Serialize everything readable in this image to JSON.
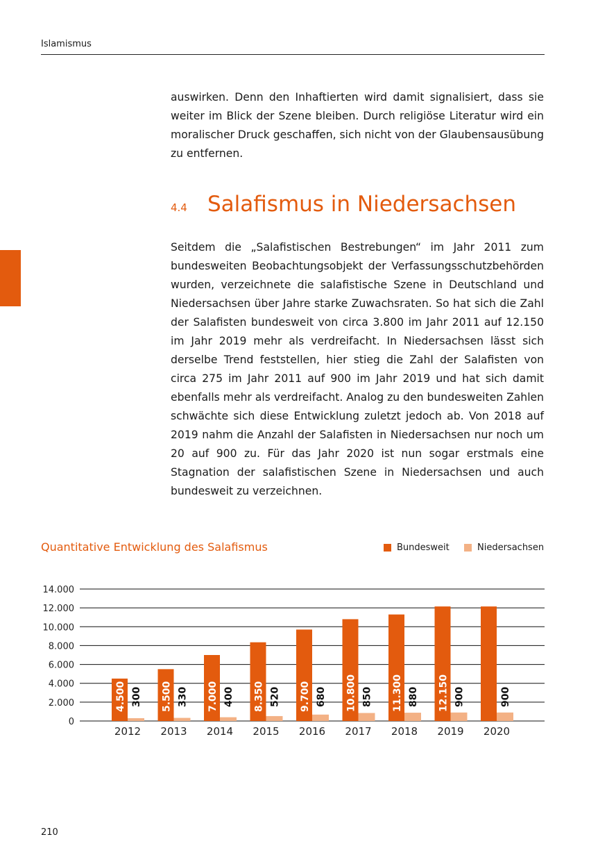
{
  "header": {
    "running_title": "Islamismus"
  },
  "intro_paragraph": "auswirken. Denn den Inhaftierten wird damit signalisiert, dass sie weiter im Blick der Szene bleiben. Durch religiöse Literatur wird ein moralischer Druck geschaffen, sich nicht von der Glaubensausübung zu entfernen.",
  "section": {
    "number": "4.4",
    "title": "Salafismus in Niedersachsen"
  },
  "body_paragraph": "Seitdem die „Salafistischen Bestrebungen“ im Jahr 2011 zum bundesweiten Beobachtungsobjekt der Verfassungsschutzbehörden wurden, verzeichnete die salafistische Szene in Deutschland und Niedersachsen über Jahre starke Zuwachsraten. So hat sich die Zahl der Salafisten bundesweit von circa 3.800 im Jahr 2011 auf 12.150 im Jahr 2019 mehr als verdreifacht. In Niedersachsen lässt sich derselbe Trend feststellen, hier stieg die Zahl der Salafisten von circa 275 im Jahr 2011 auf 900 im Jahr 2019 und hat sich damit ebenfalls mehr als verdreifacht. Analog zu den bundesweiten Zahlen schwächte sich diese Entwicklung zuletzt jedoch ab. Von 2018 auf 2019 nahm die Anzahl der Salafisten in Niedersachsen nur noch um 20 auf 900 zu. Für das Jahr 2020 ist nun sogar erstmals eine Stagnation der salafistischen Szene in Niedersachsen und auch bundesweit zu verzeichnen.",
  "footer": {
    "page_number": "210"
  },
  "colors": {
    "accent": "#e35b0e",
    "light": "#f3b185"
  },
  "chart_data": {
    "type": "bar",
    "title": "Quantitative Entwicklung des Salafismus",
    "categories": [
      "2012",
      "2013",
      "2014",
      "2015",
      "2016",
      "2017",
      "2018",
      "2019",
      "2020"
    ],
    "ylim": [
      0,
      14000
    ],
    "yticks": [
      0,
      2000,
      4000,
      6000,
      8000,
      10000,
      12000,
      14000
    ],
    "ytick_labels": [
      "0",
      "2.000",
      "4.000",
      "6.000",
      "8.000",
      "10.000",
      "12.000",
      "14.000"
    ],
    "legend_position": "top-right",
    "grid": true,
    "series": [
      {
        "name": "Bundesweit",
        "color": "#e35b0e",
        "values": [
          4500,
          5500,
          7000,
          8350,
          9700,
          10800,
          11300,
          12150,
          12150
        ],
        "labels": [
          "4.500",
          "5.500",
          "7.000",
          "8.350",
          "9.700",
          "10.800",
          "11.300",
          "12.150",
          null
        ]
      },
      {
        "name": "Niedersachsen",
        "color": "#f3b185",
        "values": [
          300,
          330,
          400,
          520,
          680,
          850,
          880,
          900,
          900
        ],
        "labels": [
          "300",
          "330",
          "400",
          "520",
          "680",
          "850",
          "880",
          "900",
          "900"
        ]
      }
    ]
  }
}
